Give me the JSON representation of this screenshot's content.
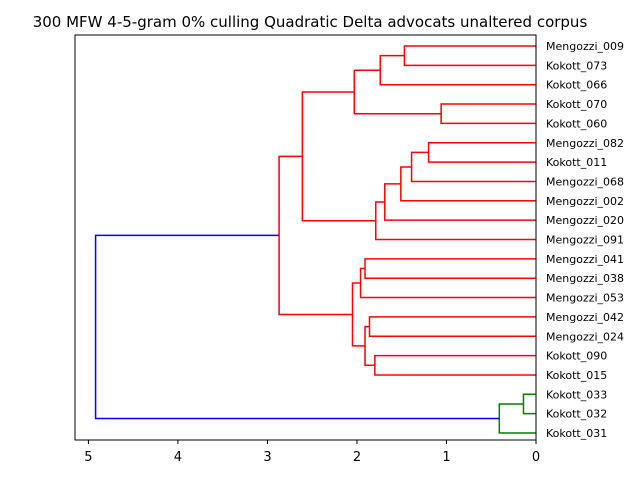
{
  "chart_data": {
    "type": "dendrogram",
    "title": "300 MFW 4-5-gram 0% culling Quadratic Delta advocats unaltered corpus",
    "orientation": "left",
    "xlim": [
      5.15,
      0
    ],
    "x_ticks": [
      5,
      4,
      3,
      2,
      1,
      0
    ],
    "x_tick_labels": [
      "5",
      "4",
      "3",
      "2",
      "1",
      "0"
    ],
    "leaves": [
      "Mengozzi_009",
      "Kokott_073",
      "Kokott_066",
      "Kokott_070",
      "Kokott_060",
      "Mengozzi_082",
      "Kokott_011",
      "Mengozzi_068",
      "Mengozzi_002",
      "Mengozzi_020",
      "Mengozzi_091",
      "Mengozzi_041",
      "Mengozzi_038",
      "Mengozzi_053",
      "Mengozzi_042",
      "Mengozzi_024",
      "Kokott_090",
      "Kokott_015",
      "Kokott_033",
      "Kokott_032",
      "Kokott_031"
    ],
    "colors": {
      "cluster_a": "#ff0000",
      "cluster_b": "#008000",
      "root": "#0000ff",
      "axes": "#000000"
    },
    "links": [
      {
        "l": 0,
        "r": 1,
        "h": 1.47,
        "c": "cluster_a"
      },
      {
        "l": "m0",
        "r": 2,
        "h": 1.74,
        "c": "cluster_a"
      },
      {
        "l": 3,
        "r": 4,
        "h": 1.06,
        "c": "cluster_a"
      },
      {
        "l": "m1",
        "r": "m2",
        "h": 2.03,
        "c": "cluster_a"
      },
      {
        "l": 5,
        "r": 6,
        "h": 1.2,
        "c": "cluster_a"
      },
      {
        "l": "m4",
        "r": 7,
        "h": 1.39,
        "c": "cluster_a"
      },
      {
        "l": "m5",
        "r": 8,
        "h": 1.51,
        "c": "cluster_a"
      },
      {
        "l": "m6",
        "r": 9,
        "h": 1.69,
        "c": "cluster_a"
      },
      {
        "l": "m7",
        "r": 10,
        "h": 1.79,
        "c": "cluster_a"
      },
      {
        "l": "m3",
        "r": "m8",
        "h": 2.61,
        "c": "cluster_a"
      },
      {
        "l": 11,
        "r": 12,
        "h": 1.91,
        "c": "cluster_a"
      },
      {
        "l": "m10",
        "r": 13,
        "h": 1.96,
        "c": "cluster_a"
      },
      {
        "l": 14,
        "r": 15,
        "h": 1.86,
        "c": "cluster_a"
      },
      {
        "l": 16,
        "r": 17,
        "h": 1.8,
        "c": "cluster_a"
      },
      {
        "l": "m12",
        "r": "m13",
        "h": 1.91,
        "c": "cluster_a"
      },
      {
        "l": "m11",
        "r": "m14",
        "h": 2.05,
        "c": "cluster_a"
      },
      {
        "l": "m9",
        "r": "m15",
        "h": 2.87,
        "c": "cluster_a"
      },
      {
        "l": 18,
        "r": 19,
        "h": 0.14,
        "c": "cluster_b"
      },
      {
        "l": "m17",
        "r": 20,
        "h": 0.41,
        "c": "cluster_b"
      },
      {
        "l": "m16",
        "r": "m18",
        "h": 4.92,
        "c": "root"
      }
    ]
  }
}
